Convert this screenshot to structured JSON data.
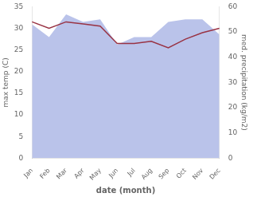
{
  "chart_data": {
    "type": "line",
    "categories": [
      "Jan",
      "Feb",
      "Mar",
      "Apr",
      "May",
      "Jun",
      "Jul",
      "Aug",
      "Sep",
      "Oct",
      "Nov",
      "Dec"
    ],
    "series": [
      {
        "type": "area",
        "color": "#b3bce8",
        "axis": "y2",
        "values": [
          53,
          48,
          57,
          54,
          55,
          45,
          48,
          48,
          54,
          55,
          55,
          49
        ]
      },
      {
        "type": "line",
        "color": "#993344",
        "values": [
          31.5,
          30.0,
          31.5,
          31.0,
          30.5,
          26.5,
          26.5,
          27.0,
          25.5,
          27.5,
          29.0,
          30.0
        ]
      }
    ],
    "xlabel": "date (month)",
    "ylabel": "max temp (C)",
    "y2label": "med. precipitation (kg/m2)",
    "ylim": [
      0,
      35
    ],
    "yticks": [
      0,
      5,
      10,
      15,
      20,
      25,
      30,
      35
    ],
    "y2lim": [
      0,
      60
    ],
    "y2ticks": [
      0,
      10,
      20,
      30,
      40,
      50,
      60
    ],
    "grid": false
  }
}
